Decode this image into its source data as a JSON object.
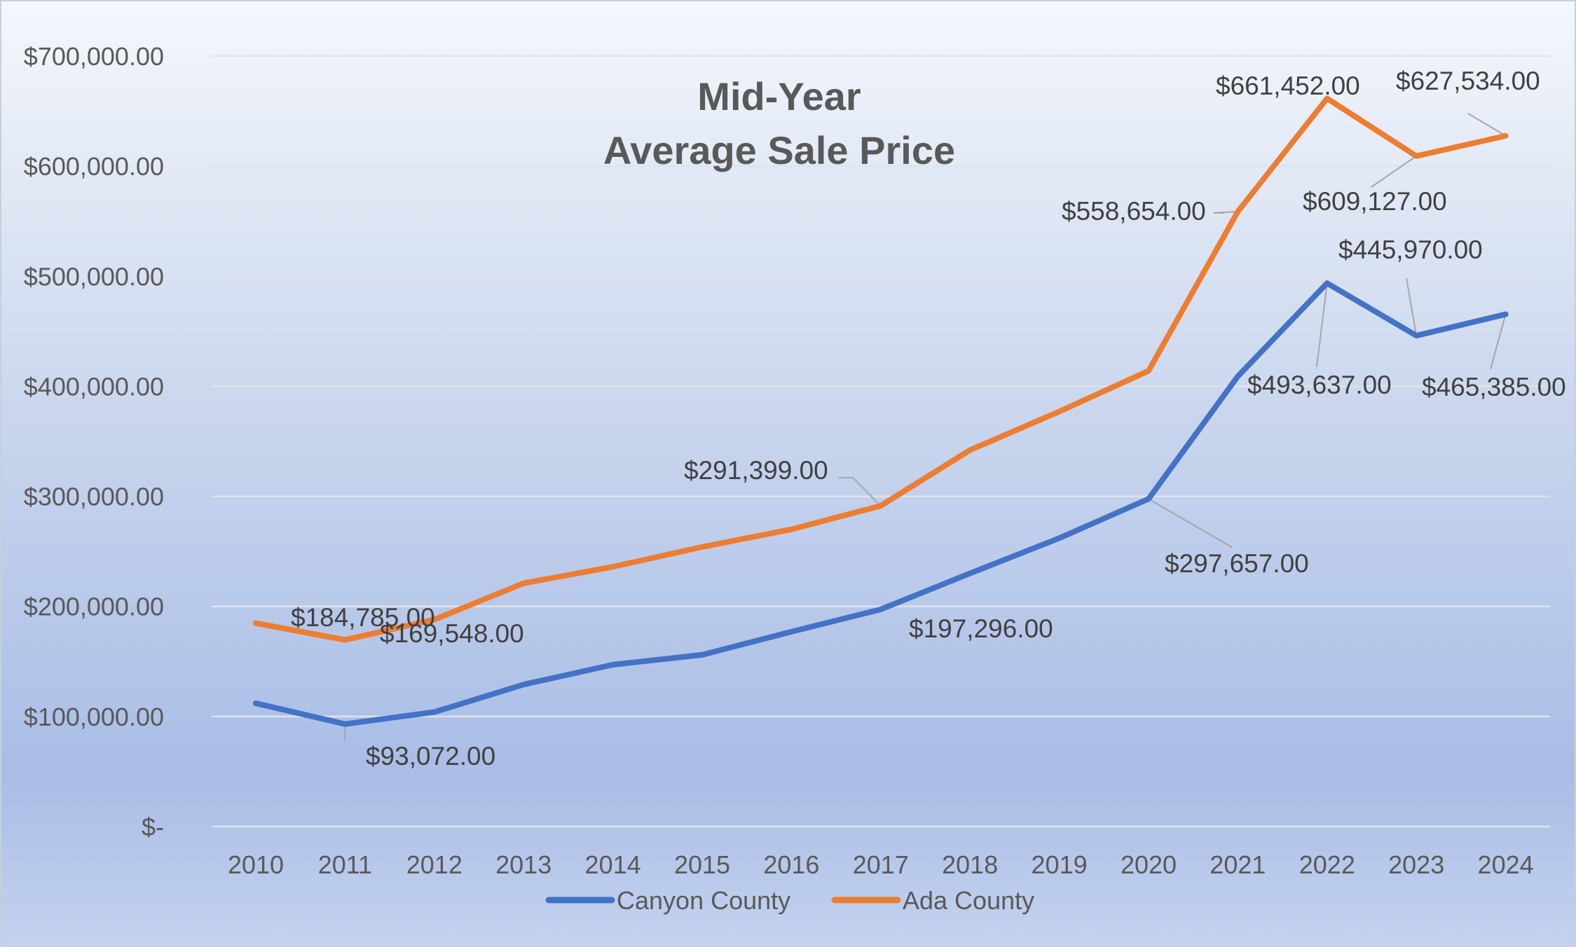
{
  "chart_data": {
    "type": "line",
    "title_lines": [
      "Mid-Year",
      "Average Sale Price"
    ],
    "xlabel": "",
    "ylabel": "",
    "categories": [
      "2010",
      "2011",
      "2012",
      "2013",
      "2014",
      "2015",
      "2016",
      "2017",
      "2018",
      "2019",
      "2020",
      "2021",
      "2022",
      "2023",
      "2024"
    ],
    "ylim": [
      0,
      700000
    ],
    "yticks": [
      0,
      100000,
      200000,
      300000,
      400000,
      500000,
      600000,
      700000
    ],
    "ytick_labels": [
      "$-",
      "$100,000.00",
      "$200,000.00",
      "$300,000.00",
      "$400,000.00",
      "$500,000.00",
      "$600,000.00",
      "$700,000.00"
    ],
    "grid": true,
    "legend_position": "bottom",
    "series": [
      {
        "name": "Canyon County",
        "color": "#4472c4",
        "values": [
          112000,
          93072,
          104000,
          129000,
          147000,
          156000,
          177000,
          197296,
          230000,
          262000,
          297657,
          409000,
          493637,
          445970,
          465385
        ],
        "labels": [
          null,
          "$93,072.00",
          null,
          null,
          null,
          null,
          null,
          "$197,296.00",
          null,
          null,
          "$297,657.00",
          null,
          "$493,637.00",
          "$445,970.00",
          "$465,385.00"
        ]
      },
      {
        "name": "Ada County",
        "color": "#ed7d31",
        "values": [
          184785,
          169548,
          188000,
          221000,
          236000,
          254000,
          270000,
          291399,
          342000,
          377000,
          414000,
          558654,
          661452,
          609127,
          627534
        ],
        "labels": [
          "$184,785.00",
          "$169,548.00",
          null,
          null,
          null,
          null,
          null,
          "$291,399.00",
          null,
          null,
          null,
          "$558,654.00",
          "$661,452.00",
          "$609,127.00",
          "$627,534.00"
        ]
      }
    ]
  }
}
